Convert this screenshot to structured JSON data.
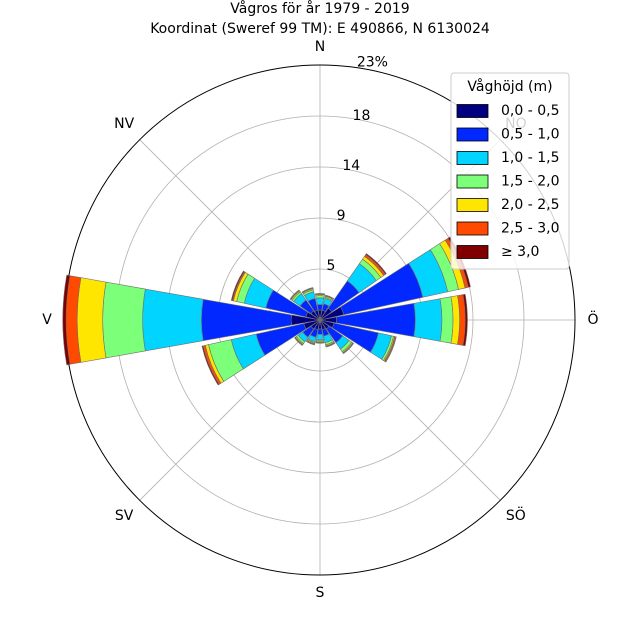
{
  "chart_data": {
    "type": "windrose",
    "title": "Vågros för år 1979 - 2019",
    "subtitle": "Koordinat (Sweref 99 TM): E 490866, N 6130024",
    "direction_labels": [
      "N",
      "NO",
      "Ö",
      "SÖ",
      "S",
      "SV",
      "V",
      "NV"
    ],
    "ring_labels": [
      "5",
      "9",
      "14",
      "18",
      "23%"
    ],
    "ring_values": [
      4.6,
      9.2,
      13.8,
      18.4,
      23.0
    ],
    "rmax": 23.0,
    "legend": {
      "title": "Våghöjd (m)",
      "placement": "top-right",
      "entries": [
        "0,0 - 0,5",
        "0,5 - 1,0",
        "1,0 - 1,5",
        "1,5 - 2,0",
        "2,0 - 2,5",
        "2,5 - 3,0",
        "≥ 3,0"
      ]
    },
    "bin_colors": [
      "#000080",
      "#0028ff",
      "#00d4ff",
      "#7cff79",
      "#ffe600",
      "#ff4a00",
      "#800000"
    ],
    "sector_width_deg": 22.5,
    "sectors": [
      {
        "direction_deg": 0,
        "cumulative": [
          0.9,
          1.4,
          2.0,
          2.2,
          2.3,
          2.35,
          2.4
        ]
      },
      {
        "direction_deg": 22.5,
        "cumulative": [
          0.9,
          1.5,
          2.0,
          2.1,
          2.2,
          2.25,
          2.3
        ]
      },
      {
        "direction_deg": 45,
        "cumulative": [
          1.3,
          4.3,
          6.2,
          6.7,
          7.0,
          7.2,
          7.3
        ]
      },
      {
        "direction_deg": 67.5,
        "cumulative": [
          2.2,
          9.5,
          11.8,
          12.8,
          13.4,
          13.7,
          13.9
        ]
      },
      {
        "direction_deg": 90,
        "cumulative": [
          1.5,
          8.6,
          11.0,
          12.0,
          12.6,
          13.1,
          13.3
        ]
      },
      {
        "direction_deg": 112.5,
        "cumulative": [
          1.3,
          5.4,
          6.6,
          6.8,
          6.9,
          7.0,
          7.05
        ]
      },
      {
        "direction_deg": 135,
        "cumulative": [
          1.0,
          2.5,
          3.2,
          3.5,
          3.6,
          3.65,
          3.7
        ]
      },
      {
        "direction_deg": 157.5,
        "cumulative": [
          0.9,
          1.5,
          2.1,
          2.3,
          2.4,
          2.45,
          2.5
        ]
      },
      {
        "direction_deg": 180,
        "cumulative": [
          0.8,
          1.3,
          1.8,
          1.9,
          2.0,
          2.05,
          2.1
        ]
      },
      {
        "direction_deg": 202.5,
        "cumulative": [
          0.9,
          1.6,
          2.0,
          2.1,
          2.2,
          2.25,
          2.3
        ]
      },
      {
        "direction_deg": 225,
        "cumulative": [
          1.0,
          1.9,
          2.4,
          2.6,
          2.7,
          2.75,
          2.8
        ]
      },
      {
        "direction_deg": 247.5,
        "cumulative": [
          1.5,
          5.9,
          8.2,
          10.3,
          10.6,
          10.8,
          10.9
        ]
      },
      {
        "direction_deg": 270,
        "cumulative": [
          2.6,
          10.7,
          16.0,
          19.6,
          21.9,
          22.9,
          23.2
        ]
      },
      {
        "direction_deg": 292.5,
        "cumulative": [
          1.3,
          5.0,
          7.0,
          7.7,
          8.0,
          8.1,
          8.2
        ]
      },
      {
        "direction_deg": 315,
        "cumulative": [
          1.0,
          2.2,
          2.9,
          3.1,
          3.2,
          3.25,
          3.3
        ]
      },
      {
        "direction_deg": 337.5,
        "cumulative": [
          0.9,
          2.0,
          2.6,
          2.8,
          2.9,
          2.95,
          3.0
        ]
      }
    ]
  }
}
